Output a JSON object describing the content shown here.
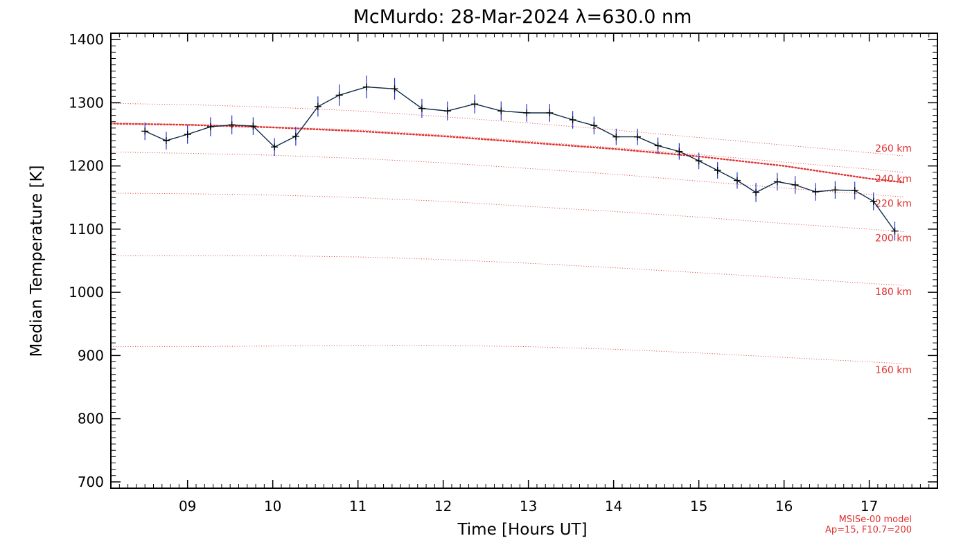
{
  "chart_data": {
    "type": "line",
    "title": "McMurdo: 28-Mar-2024 λ=630.0 nm",
    "xlabel": "Time [Hours UT]",
    "ylabel": "Median Temperature [K]",
    "xlim": [
      8.1,
      17.8
    ],
    "ylim": [
      690,
      1410
    ],
    "x_ticks": [
      9,
      10,
      11,
      12,
      13,
      14,
      15,
      16,
      17
    ],
    "x_tick_labels": [
      "09",
      "10",
      "11",
      "12",
      "13",
      "14",
      "15",
      "16",
      "17"
    ],
    "y_ticks": [
      700,
      800,
      900,
      1000,
      1100,
      1200,
      1300,
      1400
    ],
    "y_tick_labels": [
      "700",
      "800",
      "900",
      "1000",
      "1100",
      "1200",
      "1300",
      "1400"
    ],
    "grid": false,
    "colors": {
      "measurement_line": "#0b2a4a",
      "error_bar": "#2233cc",
      "model": "#e03030"
    },
    "series": [
      {
        "x": [
          8.5,
          8.75,
          9.0,
          9.27,
          9.52,
          9.77,
          10.02,
          10.27,
          10.53,
          10.78,
          11.1,
          11.43,
          11.75,
          12.05,
          12.37,
          12.68,
          12.98,
          13.25,
          13.52,
          13.77,
          14.03,
          14.28,
          14.52,
          14.77,
          15.0,
          15.22,
          15.45,
          15.67,
          15.92,
          16.13,
          16.37,
          16.6,
          16.83,
          17.05,
          17.3
        ],
        "y": [
          1255,
          1240,
          1250,
          1262,
          1265,
          1263,
          1230,
          1247,
          1294,
          1312,
          1325,
          1322,
          1291,
          1287,
          1298,
          1287,
          1284,
          1284,
          1273,
          1264,
          1246,
          1246,
          1232,
          1223,
          1208,
          1193,
          1177,
          1158,
          1175,
          1170,
          1159,
          1162,
          1161,
          1144,
          1097
        ],
        "error": [
          14,
          14,
          15,
          15,
          15,
          14,
          14,
          15,
          16,
          17,
          18,
          17,
          15,
          15,
          15,
          15,
          14,
          14,
          14,
          14,
          13,
          13,
          13,
          13,
          13,
          13,
          13,
          15,
          14,
          14,
          14,
          14,
          14,
          14,
          15
        ]
      }
    ],
    "model": {
      "x": [
        8.1,
        9.0,
        10.0,
        11.0,
        12.0,
        13.0,
        14.0,
        15.0,
        16.0,
        17.0,
        17.4
      ],
      "curves": [
        {
          "label": "160 km",
          "y": [
            914,
            914,
            915,
            916,
            916,
            914,
            910,
            904,
            897,
            890,
            887
          ]
        },
        {
          "label": "180 km",
          "y": [
            1058,
            1058,
            1058,
            1056,
            1052,
            1046,
            1039,
            1031,
            1023,
            1014,
            1011
          ]
        },
        {
          "label": "200 km",
          "y": [
            1157,
            1156,
            1154,
            1150,
            1144,
            1136,
            1128,
            1119,
            1109,
            1100,
            1096
          ]
        },
        {
          "label": "220 km",
          "y": [
            1222,
            1220,
            1217,
            1212,
            1205,
            1196,
            1187,
            1176,
            1165,
            1155,
            1151
          ]
        },
        {
          "label": "240 km",
          "y": [
            1268,
            1266,
            1262,
            1257,
            1249,
            1239,
            1229,
            1218,
            1206,
            1195,
            1190
          ]
        },
        {
          "label": "260 km",
          "y": [
            1299,
            1297,
            1293,
            1287,
            1278,
            1268,
            1257,
            1245,
            1233,
            1221,
            1216
          ]
        }
      ],
      "fitted": {
        "y": [
          1267,
          1265,
          1261,
          1255,
          1247,
          1237,
          1227,
          1215,
          1200,
          1180,
          1174
        ]
      }
    },
    "annotations": [
      "MSISe-00 model",
      "Ap=15, F10.7=200"
    ]
  }
}
